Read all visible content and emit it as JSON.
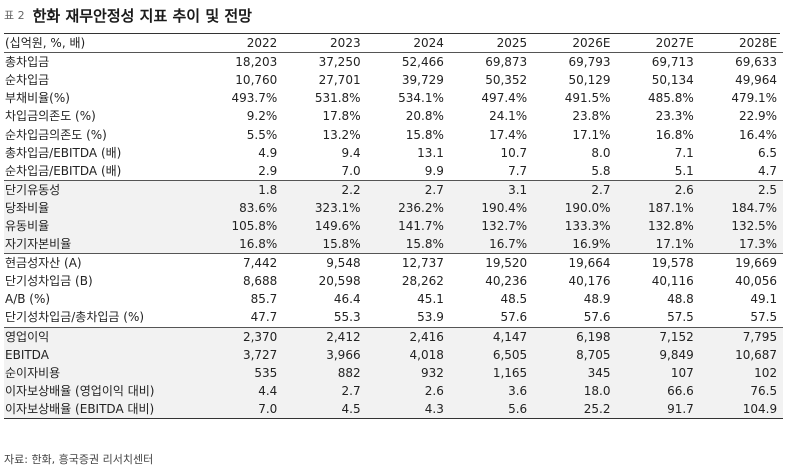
{
  "title": {
    "label": "표 2",
    "text": "한화 재무안정성 지표 추이 및 전망"
  },
  "table": {
    "header": [
      "(십억원, %, 배)",
      "2022",
      "2023",
      "2024",
      "2025",
      "2026E",
      "2027E",
      "2028E"
    ],
    "groups": [
      {
        "rows": [
          [
            "총차입금",
            "18,203",
            "37,250",
            "52,466",
            "69,873",
            "69,793",
            "69,713",
            "69,633"
          ],
          [
            "순차입금",
            "10,760",
            "27,701",
            "39,729",
            "50,352",
            "50,129",
            "50,134",
            "49,964"
          ],
          [
            "부채비율(%)",
            "493.7%",
            "531.8%",
            "534.1%",
            "497.4%",
            "491.5%",
            "485.8%",
            "479.1%"
          ],
          [
            "차입금의존도 (%)",
            "9.2%",
            "17.8%",
            "20.8%",
            "24.1%",
            "23.8%",
            "23.3%",
            "22.9%"
          ],
          [
            "순차입금의존도 (%)",
            "5.5%",
            "13.2%",
            "15.8%",
            "17.4%",
            "17.1%",
            "16.8%",
            "16.4%"
          ],
          [
            "총차입금/EBITDA (배)",
            "4.9",
            "9.4",
            "13.1",
            "10.7",
            "8.0",
            "7.1",
            "6.5"
          ],
          [
            "순차입금/EBITDA (배)",
            "2.9",
            "7.0",
            "9.9",
            "7.7",
            "5.8",
            "5.1",
            "4.7"
          ]
        ]
      },
      {
        "rows": [
          [
            "단기유동성",
            "1.8",
            "2.2",
            "2.7",
            "3.1",
            "2.7",
            "2.6",
            "2.5"
          ],
          [
            "당좌비율",
            "83.6%",
            "323.1%",
            "236.2%",
            "190.4%",
            "190.0%",
            "187.1%",
            "184.7%"
          ],
          [
            "유동비율",
            "105.8%",
            "149.6%",
            "141.7%",
            "132.7%",
            "133.3%",
            "132.8%",
            "132.5%"
          ],
          [
            "자기자본비율",
            "16.8%",
            "15.8%",
            "15.8%",
            "16.7%",
            "16.9%",
            "17.1%",
            "17.3%"
          ]
        ]
      },
      {
        "rows": [
          [
            "현금성자산 (A)",
            "7,442",
            "9,548",
            "12,737",
            "19,520",
            "19,664",
            "19,578",
            "19,669"
          ],
          [
            "단기성차입금 (B)",
            "8,688",
            "20,598",
            "28,262",
            "40,236",
            "40,176",
            "40,116",
            "40,056"
          ],
          [
            "A/B (%)",
            "85.7",
            "46.4",
            "45.1",
            "48.5",
            "48.9",
            "48.8",
            "49.1"
          ],
          [
            "단기성차입금/총차입금 (%)",
            "47.7",
            "55.3",
            "53.9",
            "57.6",
            "57.6",
            "57.5",
            "57.5"
          ]
        ]
      },
      {
        "rows": [
          [
            "영업이익",
            "2,370",
            "2,412",
            "2,416",
            "4,147",
            "6,198",
            "7,152",
            "7,795"
          ],
          [
            "EBITDA",
            "3,727",
            "3,966",
            "4,018",
            "6,505",
            "8,705",
            "9,849",
            "10,687"
          ],
          [
            "순이자비용",
            "535",
            "882",
            "932",
            "1,165",
            "345",
            "107",
            "102"
          ],
          [
            "이자보상배율 (영업이익 대비)",
            "4.4",
            "2.7",
            "2.6",
            "3.6",
            "18.0",
            "66.6",
            "76.5"
          ],
          [
            "이자보상배율 (EBITDA 대비)",
            "7.0",
            "4.5",
            "4.3",
            "5.6",
            "25.2",
            "91.7",
            "104.9"
          ]
        ]
      }
    ]
  },
  "source": "자료: 한화, 흥국증권 리서치센터"
}
